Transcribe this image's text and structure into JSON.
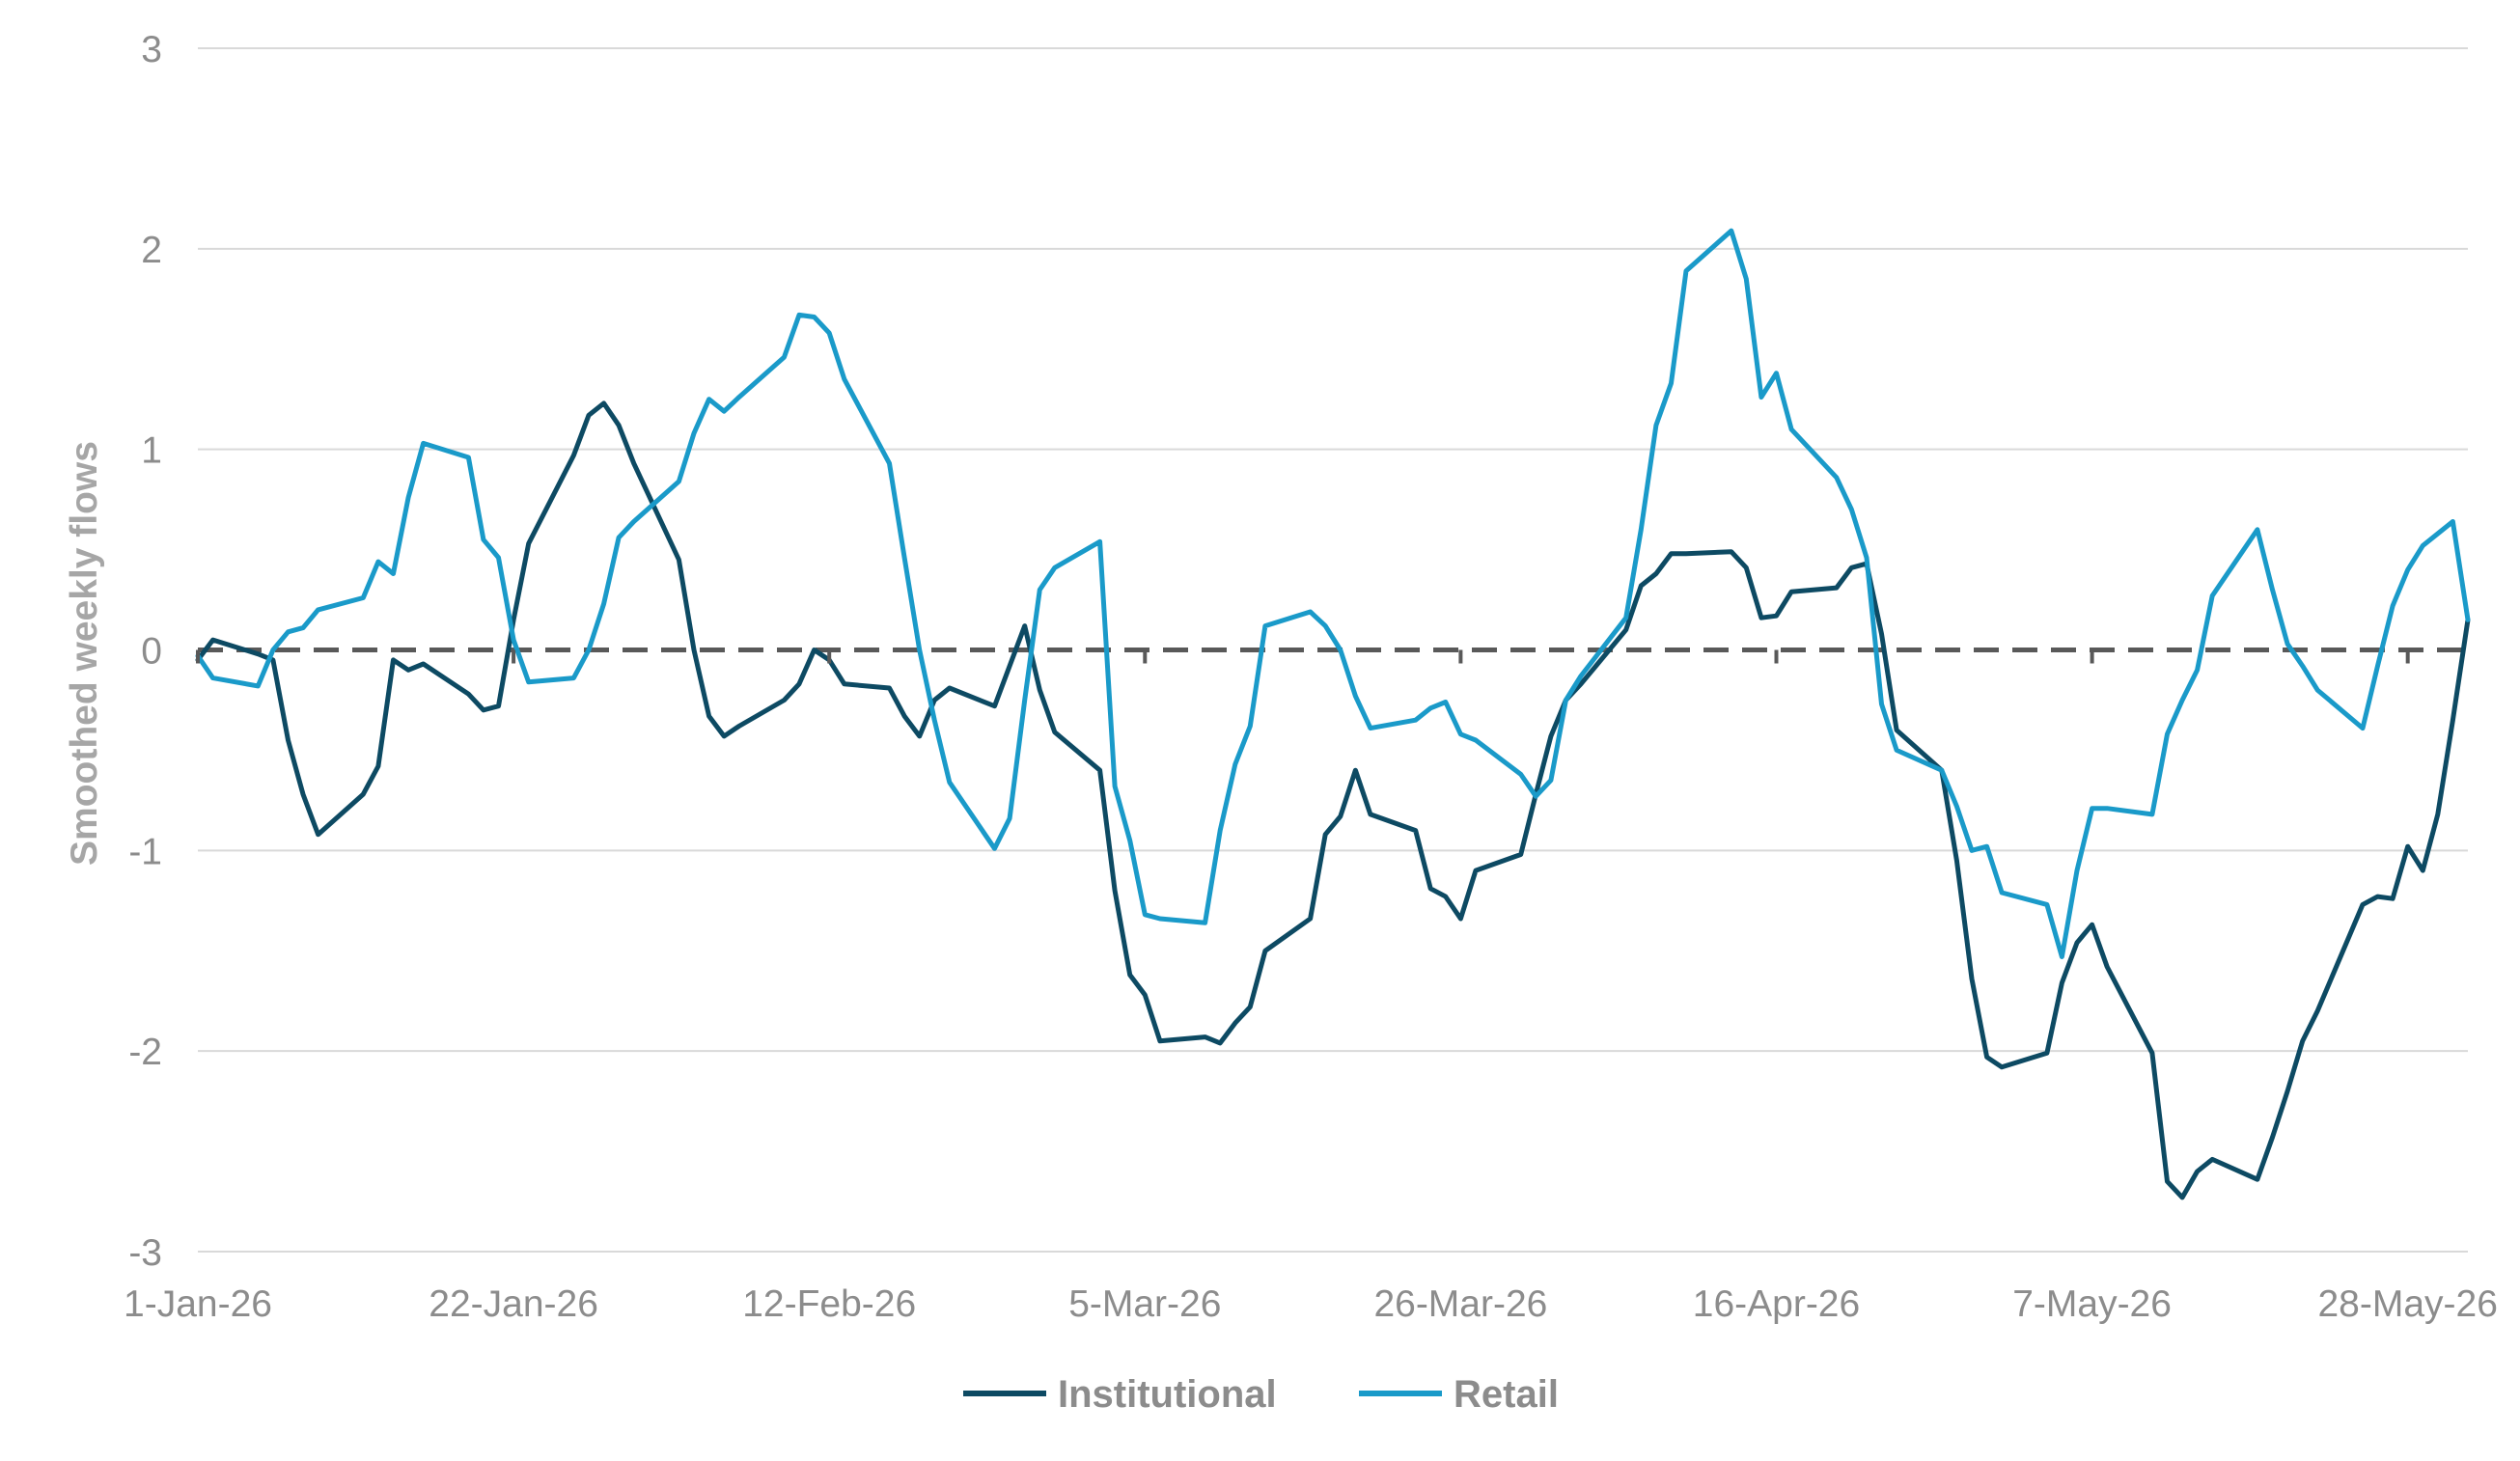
{
  "chart_data": {
    "type": "line",
    "title": "",
    "xlabel": "",
    "ylabel": "Smoothed weekly flows",
    "ylim": [
      -3,
      3
    ],
    "yticks": [
      3,
      2,
      1,
      0,
      -1,
      -2,
      -3
    ],
    "xlim": [
      "2026-01-01",
      "2026-06-01"
    ],
    "xticks": [
      {
        "date": "2026-01-01",
        "label": "1-Jan-26"
      },
      {
        "date": "2026-01-22",
        "label": "22-Jan-26"
      },
      {
        "date": "2026-02-12",
        "label": "12-Feb-26"
      },
      {
        "date": "2026-03-05",
        "label": "5-Mar-26"
      },
      {
        "date": "2026-03-26",
        "label": "26-Mar-26"
      },
      {
        "date": "2026-04-16",
        "label": "16-Apr-26"
      },
      {
        "date": "2026-05-07",
        "label": "7-May-26"
      },
      {
        "date": "2026-05-28",
        "label": "28-May-26"
      }
    ],
    "grid": true,
    "zero_line": "dashed",
    "legend_position": "bottom-center",
    "series": [
      {
        "name": "Institutional",
        "color": "#0d4a63",
        "points": [
          [
            "2026-01-01",
            -0.05
          ],
          [
            "2026-01-02",
            0.05
          ],
          [
            "2026-01-05",
            -0.02
          ],
          [
            "2026-01-06",
            -0.05
          ],
          [
            "2026-01-07",
            -0.45
          ],
          [
            "2026-01-08",
            -0.72
          ],
          [
            "2026-01-09",
            -0.92
          ],
          [
            "2026-01-12",
            -0.72
          ],
          [
            "2026-01-13",
            -0.58
          ],
          [
            "2026-01-14",
            -0.05
          ],
          [
            "2026-01-15",
            -0.1
          ],
          [
            "2026-01-16",
            -0.07
          ],
          [
            "2026-01-19",
            -0.22
          ],
          [
            "2026-01-20",
            -0.3
          ],
          [
            "2026-01-21",
            -0.28
          ],
          [
            "2026-01-22",
            0.15
          ],
          [
            "2026-01-23",
            0.53
          ],
          [
            "2026-01-26",
            0.97
          ],
          [
            "2026-01-27",
            1.17
          ],
          [
            "2026-01-28",
            1.23
          ],
          [
            "2026-01-29",
            1.12
          ],
          [
            "2026-01-30",
            0.93
          ],
          [
            "2026-02-02",
            0.45
          ],
          [
            "2026-02-03",
            0.0
          ],
          [
            "2026-02-04",
            -0.33
          ],
          [
            "2026-02-05",
            -0.43
          ],
          [
            "2026-02-06",
            -0.38
          ],
          [
            "2026-02-09",
            -0.25
          ],
          [
            "2026-02-10",
            -0.17
          ],
          [
            "2026-02-11",
            0.0
          ],
          [
            "2026-02-12",
            -0.05
          ],
          [
            "2026-02-13",
            -0.17
          ],
          [
            "2026-02-16",
            -0.19
          ],
          [
            "2026-02-17",
            -0.33
          ],
          [
            "2026-02-18",
            -0.43
          ],
          [
            "2026-02-19",
            -0.25
          ],
          [
            "2026-02-20",
            -0.19
          ],
          [
            "2026-02-23",
            -0.28
          ],
          [
            "2026-02-24",
            -0.08
          ],
          [
            "2026-02-25",
            0.12
          ],
          [
            "2026-02-26",
            -0.2
          ],
          [
            "2026-02-27",
            -0.41
          ],
          [
            "2026-03-02",
            -0.6
          ],
          [
            "2026-03-03",
            -1.2
          ],
          [
            "2026-03-04",
            -1.62
          ],
          [
            "2026-03-05",
            -1.72
          ],
          [
            "2026-03-06",
            -1.95
          ],
          [
            "2026-03-09",
            -1.93
          ],
          [
            "2026-03-10",
            -1.96
          ],
          [
            "2026-03-11",
            -1.86
          ],
          [
            "2026-03-12",
            -1.78
          ],
          [
            "2026-03-13",
            -1.5
          ],
          [
            "2026-03-16",
            -1.34
          ],
          [
            "2026-03-17",
            -0.92
          ],
          [
            "2026-03-18",
            -0.83
          ],
          [
            "2026-03-19",
            -0.6
          ],
          [
            "2026-03-20",
            -0.82
          ],
          [
            "2026-03-23",
            -0.9
          ],
          [
            "2026-03-24",
            -1.19
          ],
          [
            "2026-03-25",
            -1.23
          ],
          [
            "2026-03-26",
            -1.34
          ],
          [
            "2026-03-27",
            -1.1
          ],
          [
            "2026-03-30",
            -1.02
          ],
          [
            "2026-03-31",
            -0.72
          ],
          [
            "2026-04-01",
            -0.43
          ],
          [
            "2026-04-02",
            -0.25
          ],
          [
            "2026-04-03",
            -0.17
          ],
          [
            "2026-04-06",
            0.1
          ],
          [
            "2026-04-07",
            0.32
          ],
          [
            "2026-04-08",
            0.38
          ],
          [
            "2026-04-09",
            0.48
          ],
          [
            "2026-04-10",
            0.48
          ],
          [
            "2026-04-13",
            0.49
          ],
          [
            "2026-04-14",
            0.41
          ],
          [
            "2026-04-15",
            0.16
          ],
          [
            "2026-04-16",
            0.17
          ],
          [
            "2026-04-17",
            0.29
          ],
          [
            "2026-04-20",
            0.31
          ],
          [
            "2026-04-21",
            0.41
          ],
          [
            "2026-04-22",
            0.43
          ],
          [
            "2026-04-23",
            0.08
          ],
          [
            "2026-04-24",
            -0.4
          ],
          [
            "2026-04-27",
            -0.6
          ],
          [
            "2026-04-28",
            -1.05
          ],
          [
            "2026-04-29",
            -1.64
          ],
          [
            "2026-04-30",
            -2.03
          ],
          [
            "2026-05-01",
            -2.08
          ],
          [
            "2026-05-04",
            -2.01
          ],
          [
            "2026-05-05",
            -1.66
          ],
          [
            "2026-05-06",
            -1.46
          ],
          [
            "2026-05-07",
            -1.37
          ],
          [
            "2026-05-08",
            -1.58
          ],
          [
            "2026-05-11",
            -2.01
          ],
          [
            "2026-05-12",
            -2.65
          ],
          [
            "2026-05-13",
            -2.73
          ],
          [
            "2026-05-14",
            -2.6
          ],
          [
            "2026-05-15",
            -2.54
          ],
          [
            "2026-05-18",
            -2.64
          ],
          [
            "2026-05-19",
            -2.43
          ],
          [
            "2026-05-20",
            -2.2
          ],
          [
            "2026-05-21",
            -1.95
          ],
          [
            "2026-05-22",
            -1.8
          ],
          [
            "2026-05-25",
            -1.27
          ],
          [
            "2026-05-26",
            -1.23
          ],
          [
            "2026-05-27",
            -1.24
          ],
          [
            "2026-05-28",
            -0.98
          ],
          [
            "2026-05-29",
            -1.1
          ],
          [
            "2026-05-30",
            -0.82
          ],
          [
            "2026-05-31",
            -0.35
          ],
          [
            "2026-06-01",
            0.15
          ]
        ]
      },
      {
        "name": "Retail",
        "color": "#1a9ac9",
        "points": [
          [
            "2026-01-01",
            -0.03
          ],
          [
            "2026-01-02",
            -0.14
          ],
          [
            "2026-01-05",
            -0.18
          ],
          [
            "2026-01-06",
            0.0
          ],
          [
            "2026-01-07",
            0.09
          ],
          [
            "2026-01-08",
            0.11
          ],
          [
            "2026-01-09",
            0.2
          ],
          [
            "2026-01-12",
            0.26
          ],
          [
            "2026-01-13",
            0.44
          ],
          [
            "2026-01-14",
            0.38
          ],
          [
            "2026-01-15",
            0.76
          ],
          [
            "2026-01-16",
            1.03
          ],
          [
            "2026-01-19",
            0.96
          ],
          [
            "2026-01-20",
            0.55
          ],
          [
            "2026-01-21",
            0.46
          ],
          [
            "2026-01-22",
            0.05
          ],
          [
            "2026-01-23",
            -0.16
          ],
          [
            "2026-01-26",
            -0.14
          ],
          [
            "2026-01-27",
            0.0
          ],
          [
            "2026-01-28",
            0.23
          ],
          [
            "2026-01-29",
            0.56
          ],
          [
            "2026-01-30",
            0.64
          ],
          [
            "2026-02-02",
            0.84
          ],
          [
            "2026-02-03",
            1.08
          ],
          [
            "2026-02-04",
            1.25
          ],
          [
            "2026-02-05",
            1.19
          ],
          [
            "2026-02-06",
            1.26
          ],
          [
            "2026-02-09",
            1.46
          ],
          [
            "2026-02-10",
            1.67
          ],
          [
            "2026-02-11",
            1.66
          ],
          [
            "2026-02-12",
            1.58
          ],
          [
            "2026-02-13",
            1.35
          ],
          [
            "2026-02-16",
            0.93
          ],
          [
            "2026-02-17",
            0.46
          ],
          [
            "2026-02-18",
            0.0
          ],
          [
            "2026-02-19",
            -0.35
          ],
          [
            "2026-02-20",
            -0.66
          ],
          [
            "2026-02-23",
            -0.99
          ],
          [
            "2026-02-24",
            -0.84
          ],
          [
            "2026-02-25",
            -0.25
          ],
          [
            "2026-02-26",
            0.3
          ],
          [
            "2026-02-27",
            0.41
          ],
          [
            "2026-03-02",
            0.54
          ],
          [
            "2026-03-03",
            -0.68
          ],
          [
            "2026-03-04",
            -0.95
          ],
          [
            "2026-03-05",
            -1.32
          ],
          [
            "2026-03-06",
            -1.34
          ],
          [
            "2026-03-09",
            -1.36
          ],
          [
            "2026-03-10",
            -0.9
          ],
          [
            "2026-03-11",
            -0.57
          ],
          [
            "2026-03-12",
            -0.38
          ],
          [
            "2026-03-13",
            0.12
          ],
          [
            "2026-03-16",
            0.19
          ],
          [
            "2026-03-17",
            0.12
          ],
          [
            "2026-03-18",
            0.0
          ],
          [
            "2026-03-19",
            -0.23
          ],
          [
            "2026-03-20",
            -0.39
          ],
          [
            "2026-03-23",
            -0.35
          ],
          [
            "2026-03-24",
            -0.29
          ],
          [
            "2026-03-25",
            -0.26
          ],
          [
            "2026-03-26",
            -0.42
          ],
          [
            "2026-03-27",
            -0.45
          ],
          [
            "2026-03-30",
            -0.62
          ],
          [
            "2026-03-31",
            -0.73
          ],
          [
            "2026-04-01",
            -0.65
          ],
          [
            "2026-04-02",
            -0.25
          ],
          [
            "2026-04-03",
            -0.13
          ],
          [
            "2026-04-06",
            0.16
          ],
          [
            "2026-04-07",
            0.6
          ],
          [
            "2026-04-08",
            1.12
          ],
          [
            "2026-04-09",
            1.33
          ],
          [
            "2026-04-10",
            1.89
          ],
          [
            "2026-04-13",
            2.09
          ],
          [
            "2026-04-14",
            1.85
          ],
          [
            "2026-04-15",
            1.26
          ],
          [
            "2026-04-16",
            1.38
          ],
          [
            "2026-04-17",
            1.1
          ],
          [
            "2026-04-20",
            0.86
          ],
          [
            "2026-04-21",
            0.7
          ],
          [
            "2026-04-22",
            0.46
          ],
          [
            "2026-04-23",
            -0.27
          ],
          [
            "2026-04-24",
            -0.5
          ],
          [
            "2026-04-27",
            -0.6
          ],
          [
            "2026-04-28",
            -0.78
          ],
          [
            "2026-04-29",
            -1.0
          ],
          [
            "2026-04-30",
            -0.98
          ],
          [
            "2026-05-01",
            -1.21
          ],
          [
            "2026-05-04",
            -1.27
          ],
          [
            "2026-05-05",
            -1.53
          ],
          [
            "2026-05-06",
            -1.1
          ],
          [
            "2026-05-07",
            -0.79
          ],
          [
            "2026-05-08",
            -0.79
          ],
          [
            "2026-05-11",
            -0.82
          ],
          [
            "2026-05-12",
            -0.42
          ],
          [
            "2026-05-13",
            -0.25
          ],
          [
            "2026-05-14",
            -0.1
          ],
          [
            "2026-05-15",
            0.27
          ],
          [
            "2026-05-18",
            0.6
          ],
          [
            "2026-05-19",
            0.3
          ],
          [
            "2026-05-20",
            0.03
          ],
          [
            "2026-05-21",
            -0.08
          ],
          [
            "2026-05-22",
            -0.2
          ],
          [
            "2026-05-25",
            -0.39
          ],
          [
            "2026-05-26",
            -0.08
          ],
          [
            "2026-05-27",
            0.22
          ],
          [
            "2026-05-28",
            0.4
          ],
          [
            "2026-05-29",
            0.52
          ],
          [
            "2026-05-30",
            0.58
          ],
          [
            "2026-05-31",
            0.64
          ],
          [
            "2026-06-01",
            0.15
          ]
        ]
      }
    ]
  }
}
